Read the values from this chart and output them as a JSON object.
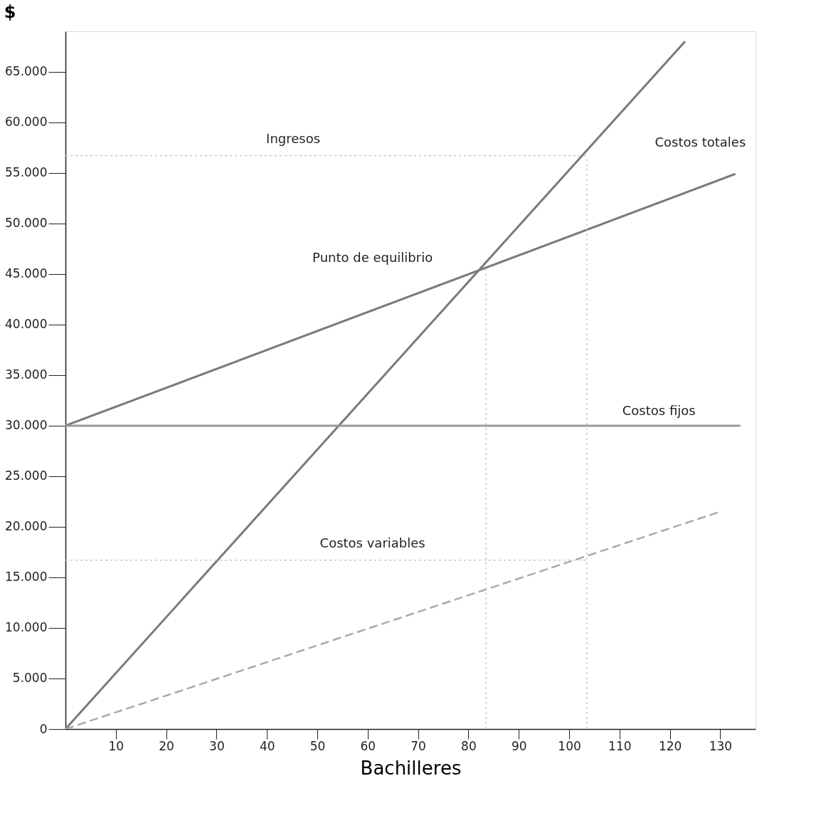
{
  "chart_data": {
    "type": "line",
    "xlabel": "Bachilleres",
    "ylabel": "$",
    "xlim": [
      0,
      137
    ],
    "ylim": [
      0,
      69000
    ],
    "xticks": [
      10,
      20,
      30,
      40,
      50,
      60,
      70,
      80,
      90,
      100,
      110,
      120,
      130
    ],
    "yticks": [
      {
        "value": 0,
        "label": "0"
      },
      {
        "value": 5000,
        "label": "5.000"
      },
      {
        "value": 10000,
        "label": "10.000"
      },
      {
        "value": 15000,
        "label": "15.000"
      },
      {
        "value": 20000,
        "label": "20.000"
      },
      {
        "value": 25000,
        "label": "25.000"
      },
      {
        "value": 30000,
        "label": "30.000"
      },
      {
        "value": 35000,
        "label": "35.000"
      },
      {
        "value": 40000,
        "label": "40.000"
      },
      {
        "value": 45000,
        "label": "45.000"
      },
      {
        "value": 50000,
        "label": "50.000"
      },
      {
        "value": 55000,
        "label": "55.000"
      },
      {
        "value": 60000,
        "label": "60.000"
      },
      {
        "value": 65000,
        "label": "65.000"
      }
    ],
    "grid": false,
    "marker": "none",
    "series": [
      {
        "color": "#7a7a7a",
        "line_style": "solid",
        "x": [
          0,
          123
        ],
        "values": [
          0,
          68000
        ]
      },
      {
        "color": "#7a7a7a",
        "line_style": "solid",
        "x": [
          0,
          133
        ],
        "values": [
          30000,
          54900
        ]
      },
      {
        "color": "#999999",
        "line_style": "solid",
        "x": [
          0,
          134
        ],
        "values": [
          30000,
          30000
        ]
      },
      {
        "color": "#aaaaaa",
        "line_style": "dashed",
        "x": [
          0,
          130
        ],
        "values": [
          0,
          21500
        ]
      },
      {
        "color": "#bbbbbb",
        "line_style": "dotted",
        "x": [
          0,
          103.5
        ],
        "values": [
          56700,
          56700
        ]
      },
      {
        "color": "#bbbbbb",
        "line_style": "dotted",
        "x": [
          0,
          103.5
        ],
        "values": [
          16700,
          16700
        ]
      },
      {
        "color": "#bbbbbb",
        "line_style": "dotted",
        "x": [
          83.5,
          83.5
        ],
        "values": [
          0,
          45500
        ]
      },
      {
        "color": "#bbbbbb",
        "line_style": "dotted",
        "x": [
          103.5,
          103.5
        ],
        "values": [
          0,
          56700
        ]
      }
    ],
    "annotations": [
      "Ingresos",
      "Costos totales",
      "Punto de equilibrio",
      "Costos fijos",
      "Costos variables"
    ]
  }
}
